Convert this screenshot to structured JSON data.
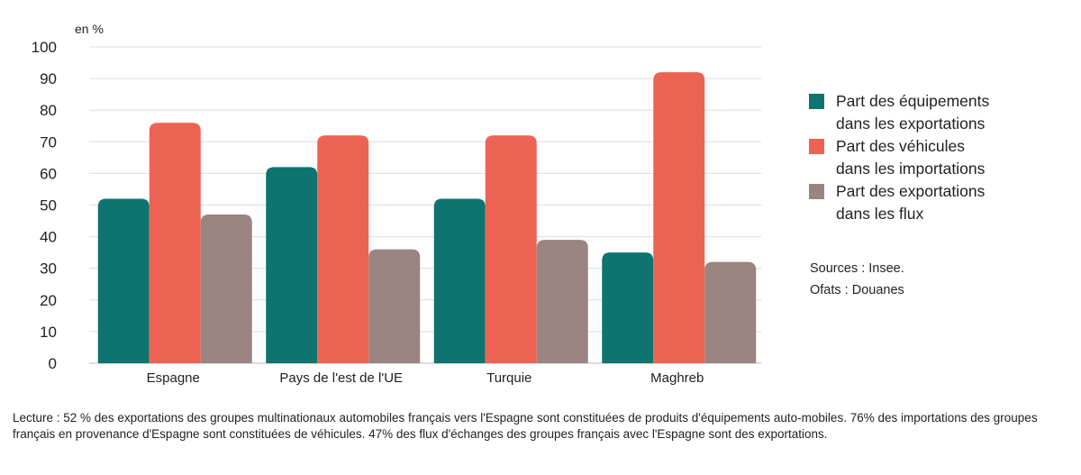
{
  "chart_data": {
    "type": "bar",
    "unit_label": "en %",
    "categories": [
      "Espagne",
      "Pays de l'est de l'UE",
      "Turquie",
      "Maghreb"
    ],
    "series": [
      {
        "name": "Part des équipements dans les exportations",
        "legend_lines": [
          "Part des équipements",
          "dans les exportations"
        ],
        "color": "#0e7470",
        "values": [
          52,
          62,
          52,
          35
        ]
      },
      {
        "name": "Part des véhicules dans les importations",
        "legend_lines": [
          "Part des véhicules",
          "dans les importations"
        ],
        "color": "#ec6354",
        "values": [
          76,
          72,
          72,
          92
        ]
      },
      {
        "name": "Part des exportations dans les flux",
        "legend_lines": [
          "Part des exportations",
          "dans les flux"
        ],
        "color": "#9a8481",
        "values": [
          47,
          36,
          39,
          32
        ]
      }
    ],
    "yticks": [
      "0",
      "10",
      "20",
      "30",
      "40",
      "50",
      "60",
      "70",
      "80",
      "90",
      "100"
    ],
    "ylim": [
      0,
      100
    ],
    "grid": true,
    "legend_position": "right"
  },
  "sources": [
    "Sources : Insee.",
    "Ofats : Douanes"
  ],
  "footnote": "Lecture : 52 % des exportations des groupes multinationaux automobiles français vers l'Espagne sont constituées de produits d'équipements auto-mobiles. 76% des importations des groupes français en provenance d'Espagne sont constituées de véhicules. 47% des flux d'échanges des groupes français avec l'Espagne sont des exportations."
}
